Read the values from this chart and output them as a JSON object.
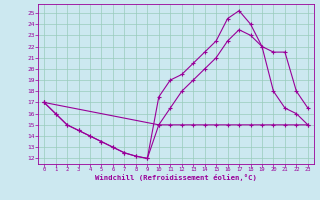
{
  "bg_color": "#cce8f0",
  "line_color": "#990099",
  "grid_color": "#99ccbb",
  "xlabel": "Windchill (Refroidissement éolien,°C)",
  "xlim_min": -0.5,
  "xlim_max": 23.5,
  "ylim_min": 11.5,
  "ylim_max": 25.8,
  "xticks": [
    0,
    1,
    2,
    3,
    4,
    5,
    6,
    7,
    8,
    9,
    10,
    11,
    12,
    13,
    14,
    15,
    16,
    17,
    18,
    19,
    20,
    21,
    22,
    23
  ],
  "yticks": [
    12,
    13,
    14,
    15,
    16,
    17,
    18,
    19,
    20,
    21,
    22,
    23,
    24,
    25
  ],
  "line1_x": [
    0,
    1,
    2,
    3,
    4,
    5,
    6,
    7,
    8,
    9,
    10,
    11,
    12,
    13,
    14,
    15,
    16,
    17,
    18,
    19,
    20,
    21,
    22,
    23
  ],
  "line1_y": [
    17,
    16,
    15,
    14.5,
    14,
    13.5,
    13,
    12.5,
    12.2,
    12.0,
    15.0,
    15.0,
    15.0,
    15.0,
    15.0,
    15.0,
    15.0,
    15.0,
    15.0,
    15.0,
    15.0,
    15.0,
    15.0,
    15.0
  ],
  "line2_x": [
    0,
    1,
    2,
    3,
    4,
    5,
    6,
    7,
    8,
    9,
    10,
    11,
    12,
    13,
    14,
    15,
    16,
    17,
    18,
    19,
    20,
    21,
    22,
    23
  ],
  "line2_y": [
    17,
    16,
    15,
    14.5,
    14,
    13.5,
    13,
    12.5,
    12.2,
    12.0,
    17.5,
    19.0,
    19.5,
    20.5,
    21.5,
    22.5,
    24.5,
    25.2,
    24.0,
    22.0,
    18.0,
    16.5,
    16.0,
    15.0
  ],
  "line3_x": [
    0,
    10,
    11,
    12,
    13,
    14,
    15,
    16,
    17,
    18,
    19,
    20,
    21,
    22,
    23
  ],
  "line3_y": [
    17,
    15.0,
    16.5,
    18.0,
    19.0,
    20.0,
    21.0,
    22.5,
    23.5,
    23.0,
    22.0,
    21.5,
    21.5,
    18.0,
    16.5
  ]
}
